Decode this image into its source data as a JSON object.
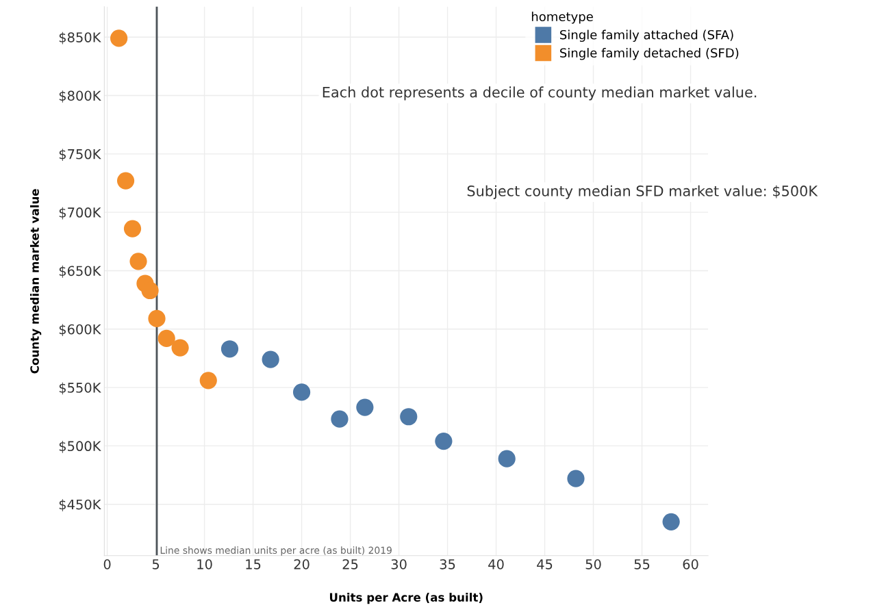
{
  "chart_data": {
    "type": "scatter",
    "xlabel": "Units per Acre (as built)",
    "ylabel": "County median market value",
    "legend_title": "hometype",
    "legend": "top right",
    "grid": true,
    "marker": "circle",
    "xlim": [
      -0.3,
      61.8
    ],
    "xticks": [
      0,
      5,
      10,
      15,
      20,
      25,
      30,
      35,
      40,
      45,
      50,
      55,
      60
    ],
    "ylim": [
      406000,
      876000
    ],
    "yticks": [
      {
        "value": 450000,
        "label": "$450K"
      },
      {
        "value": 500000,
        "label": "$500K"
      },
      {
        "value": 550000,
        "label": "$550K"
      },
      {
        "value": 600000,
        "label": "$600K"
      },
      {
        "value": 650000,
        "label": "$650K"
      },
      {
        "value": 700000,
        "label": "$700K"
      },
      {
        "value": 750000,
        "label": "$750K"
      },
      {
        "value": 800000,
        "label": "$800K"
      },
      {
        "value": 850000,
        "label": "$850K"
      }
    ],
    "series": [
      {
        "name": "Single family attached (SFA)",
        "color": "#4e79a7",
        "x": [
          12.6,
          16.8,
          20.0,
          23.9,
          26.5,
          31.0,
          34.6,
          41.1,
          48.2,
          58.0
        ],
        "values": [
          583000,
          574000,
          546000,
          523000,
          533000,
          525000,
          504000,
          489000,
          472000,
          435000
        ]
      },
      {
        "name": "Single family detached (SFD)",
        "color": "#f28e2b",
        "x": [
          1.2,
          1.9,
          2.6,
          3.2,
          3.9,
          4.4,
          5.1,
          6.1,
          7.5,
          10.4
        ],
        "values": [
          849000,
          727000,
          686000,
          658000,
          639000,
          633000,
          609000,
          592000,
          584000,
          556000
        ]
      }
    ],
    "ref_lines": [
      {
        "axis": "x",
        "value": 5.1,
        "label": "Line shows median units per acre (as built) 2019",
        "color": "#4d5459"
      }
    ],
    "annotations": [
      "Each dot represents a decile of county median market value.",
      "Subject county median SFD market value: $500K"
    ]
  }
}
